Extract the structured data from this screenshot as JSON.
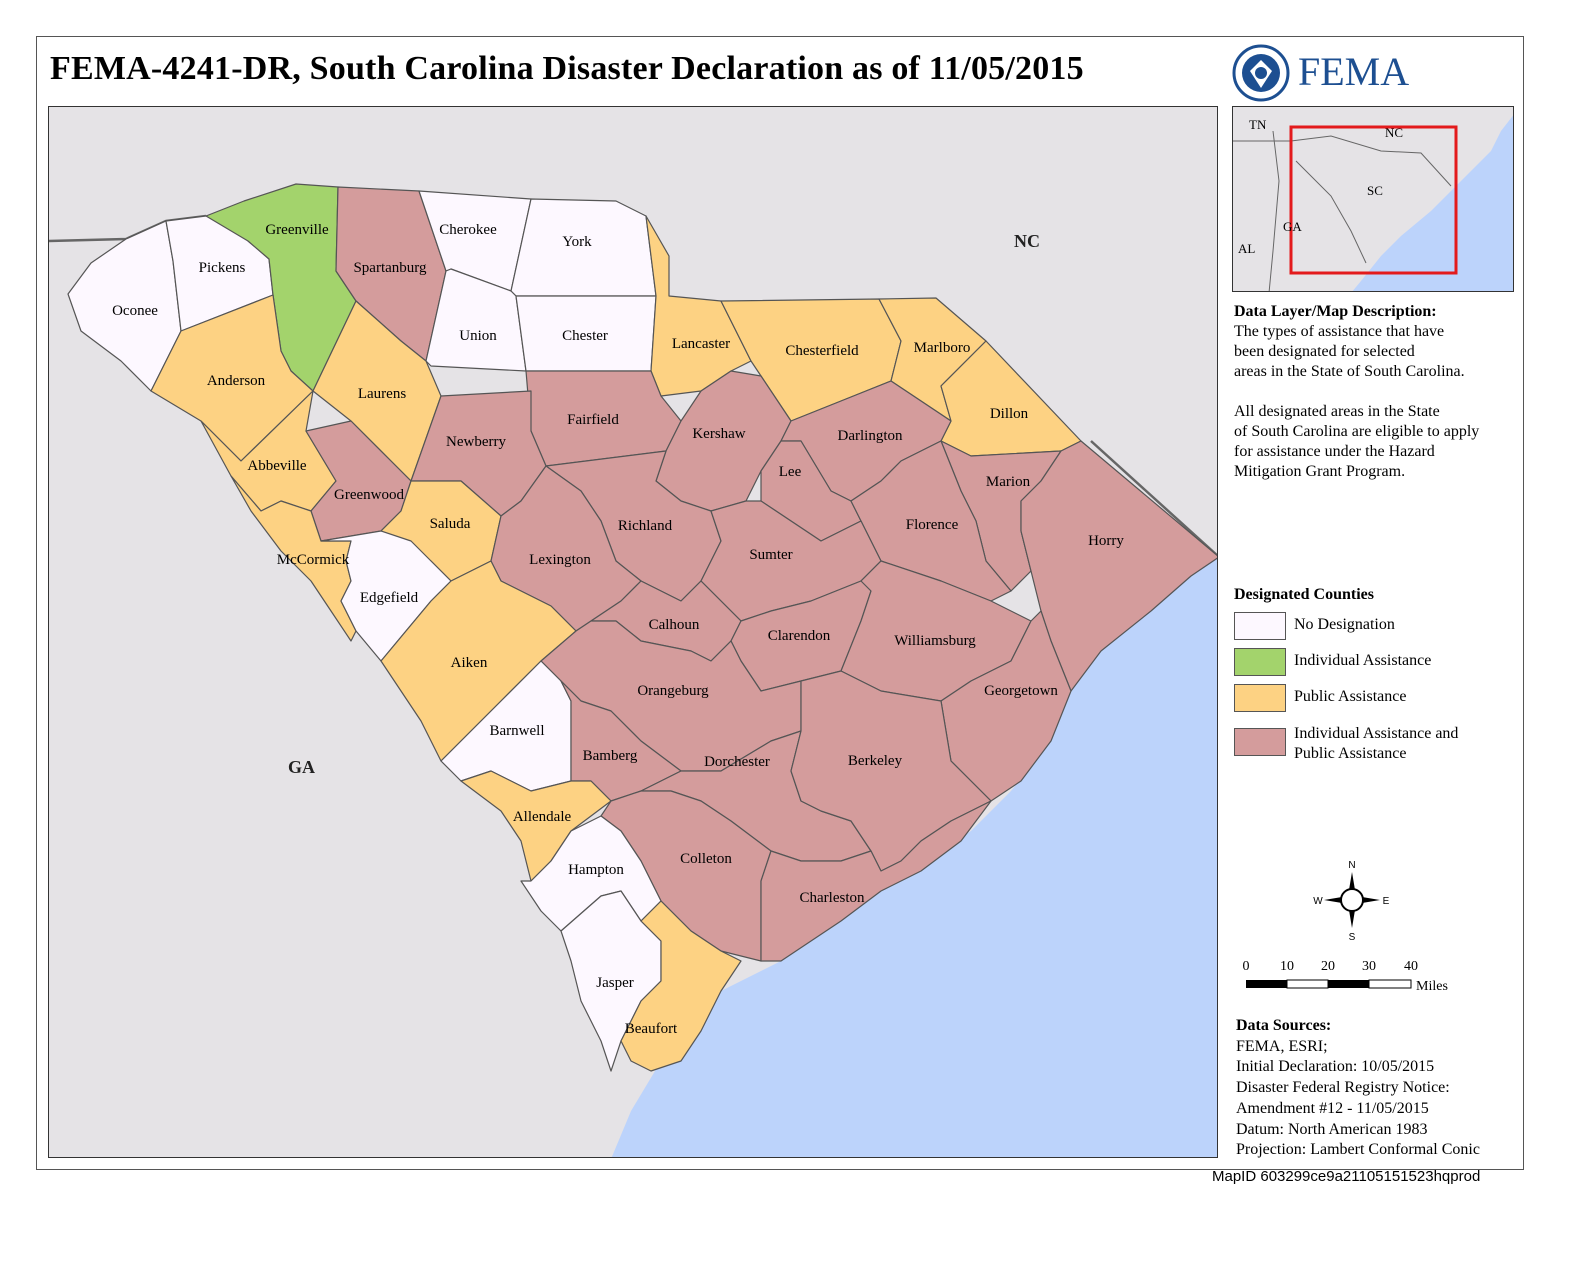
{
  "title": "FEMA-4241-DR, South Carolina Disaster Declaration as of 11/05/2015",
  "agency": {
    "name": "FEMA",
    "seal": "dhs-seal-icon",
    "color": "#1d4f91"
  },
  "map": {
    "state_labels": {
      "nc": "NC",
      "ga": "GA"
    },
    "counties": [
      {
        "name": "Oconee",
        "designation": "none"
      },
      {
        "name": "Pickens",
        "designation": "none"
      },
      {
        "name": "Greenville",
        "designation": "ia"
      },
      {
        "name": "Spartanburg",
        "designation": "ia_pa"
      },
      {
        "name": "Cherokee",
        "designation": "none"
      },
      {
        "name": "York",
        "designation": "none"
      },
      {
        "name": "Union",
        "designation": "none"
      },
      {
        "name": "Chester",
        "designation": "none"
      },
      {
        "name": "Lancaster",
        "designation": "pa"
      },
      {
        "name": "Chesterfield",
        "designation": "pa"
      },
      {
        "name": "Marlboro",
        "designation": "pa"
      },
      {
        "name": "Anderson",
        "designation": "pa"
      },
      {
        "name": "Laurens",
        "designation": "pa"
      },
      {
        "name": "Dillon",
        "designation": "pa"
      },
      {
        "name": "Fairfield",
        "designation": "ia_pa"
      },
      {
        "name": "Kershaw",
        "designation": "ia_pa"
      },
      {
        "name": "Darlington",
        "designation": "ia_pa"
      },
      {
        "name": "Newberry",
        "designation": "ia_pa"
      },
      {
        "name": "Lee",
        "designation": "ia_pa"
      },
      {
        "name": "Abbeville",
        "designation": "pa"
      },
      {
        "name": "Marion",
        "designation": "ia_pa"
      },
      {
        "name": "Greenwood",
        "designation": "ia_pa"
      },
      {
        "name": "Saluda",
        "designation": "pa"
      },
      {
        "name": "Richland",
        "designation": "ia_pa"
      },
      {
        "name": "Florence",
        "designation": "ia_pa"
      },
      {
        "name": "Horry",
        "designation": "ia_pa"
      },
      {
        "name": "Sumter",
        "designation": "ia_pa"
      },
      {
        "name": "McCormick",
        "designation": "pa"
      },
      {
        "name": "Lexington",
        "designation": "ia_pa"
      },
      {
        "name": "Edgefield",
        "designation": "none"
      },
      {
        "name": "Calhoun",
        "designation": "ia_pa"
      },
      {
        "name": "Clarendon",
        "designation": "ia_pa"
      },
      {
        "name": "Williamsburg",
        "designation": "ia_pa"
      },
      {
        "name": "Aiken",
        "designation": "pa"
      },
      {
        "name": "Orangeburg",
        "designation": "ia_pa"
      },
      {
        "name": "Georgetown",
        "designation": "ia_pa"
      },
      {
        "name": "Barnwell",
        "designation": "none"
      },
      {
        "name": "Bamberg",
        "designation": "ia_pa"
      },
      {
        "name": "Dorchester",
        "designation": "ia_pa"
      },
      {
        "name": "Berkeley",
        "designation": "ia_pa"
      },
      {
        "name": "Allendale",
        "designation": "pa"
      },
      {
        "name": "Colleton",
        "designation": "ia_pa"
      },
      {
        "name": "Hampton",
        "designation": "none"
      },
      {
        "name": "Charleston",
        "designation": "ia_pa"
      },
      {
        "name": "Jasper",
        "designation": "none"
      },
      {
        "name": "Beaufort",
        "designation": "pa"
      }
    ]
  },
  "inset": {
    "labels": [
      "TN",
      "NC",
      "SC",
      "GA",
      "AL"
    ]
  },
  "description": {
    "heading": "Data Layer/Map Description:",
    "lines1": [
      "The types of assistance that have",
      "been designated for selected",
      "areas in the State of South Carolina."
    ],
    "lines2": [
      "All designated areas in the State",
      "of South Carolina are eligible to apply",
      "for assistance under the Hazard",
      "Mitigation Grant Program."
    ]
  },
  "legend": {
    "title": "Designated Counties",
    "items": [
      {
        "key": "none",
        "label": "No Designation",
        "color": "#fdf8ff"
      },
      {
        "key": "ia",
        "label": "Individual Assistance",
        "color": "#a3d36c"
      },
      {
        "key": "pa",
        "label": "Public Assistance",
        "color": "#fdd283"
      },
      {
        "key": "ia_pa",
        "label": "Individual Assistance and",
        "label2": "Public Assistance",
        "color": "#d49c9c"
      }
    ]
  },
  "colors": {
    "ocean": "#bcd3fb",
    "land_other": "#e5e3e6",
    "border": "#555555",
    "inset_box": "#e31a1c"
  },
  "compass": {
    "n": "N",
    "s": "S",
    "e": "E",
    "w": "W"
  },
  "scale_bar": {
    "ticks": [
      "0",
      "10",
      "20",
      "30",
      "40"
    ],
    "unit": "Miles"
  },
  "sources": {
    "heading": "Data Sources:",
    "lines": [
      "FEMA, ESRI;",
      "Initial Declaration: 10/05/2015",
      "Disaster Federal Registry Notice:",
      "Amendment #12 - 11/05/2015",
      "Datum: North American 1983",
      "Projection: Lambert Conformal Conic"
    ]
  },
  "map_id": "MapID 603299ce9a21105151523hqprod"
}
